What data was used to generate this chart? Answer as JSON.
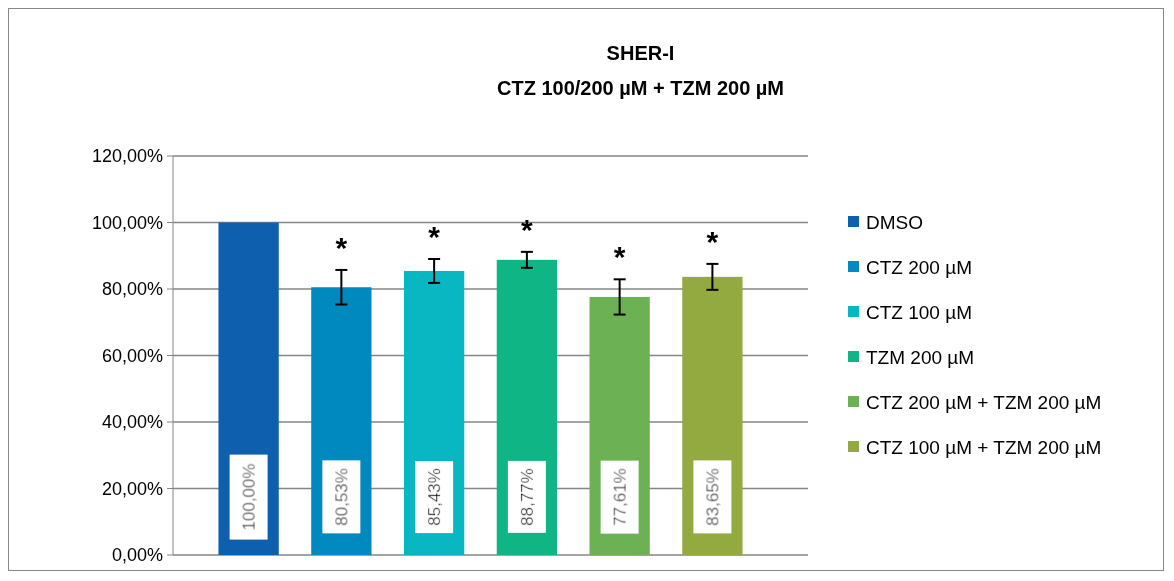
{
  "chart_data": {
    "type": "bar",
    "title": "SHER-I",
    "subtitle": "CTZ 100/200 µM + TZM 200 µM",
    "categories": [
      null
    ],
    "series": [
      {
        "name": "DMSO",
        "color": "#0e5fad",
        "values": [
          100
        ],
        "value_labels": [
          "100,00%"
        ]
      },
      {
        "name": "CTZ 200 µM",
        "color": "#0089bf",
        "values": [
          80.53
        ],
        "errors": [
          5.2
        ],
        "value_labels": [
          "80,53%"
        ]
      },
      {
        "name": "CTZ 100 µM",
        "color": "#08b7c1",
        "values": [
          85.43
        ],
        "errors": [
          3.6
        ],
        "value_labels": [
          "85,43%"
        ]
      },
      {
        "name": "TZM 200 µM",
        "color": "#10b586",
        "values": [
          88.77
        ],
        "errors": [
          2.4
        ],
        "value_labels": [
          "88,77%"
        ]
      },
      {
        "name": "CTZ 200 µM + TZM 200 µM",
        "color": "#6db155",
        "values": [
          77.61
        ],
        "errors": [
          5.3
        ],
        "value_labels": [
          "77,61%"
        ]
      },
      {
        "name": "CTZ 100 µM + TZM 200 µM",
        "color": "#93aa41",
        "values": [
          83.65
        ],
        "errors": [
          3.9
        ],
        "value_labels": [
          "83,65%"
        ]
      }
    ],
    "annotations": [
      "*",
      "*",
      "*",
      "*",
      "*"
    ],
    "ylim": [
      0,
      120
    ],
    "yticks": [
      {
        "value": 0,
        "label": "0,00%"
      },
      {
        "value": 20,
        "label": "20,00%"
      },
      {
        "value": 40,
        "label": "40,00%"
      },
      {
        "value": 60,
        "label": "60,00%"
      },
      {
        "value": 80,
        "label": "80,00%"
      },
      {
        "value": 100,
        "label": "100,00%"
      },
      {
        "value": 120,
        "label": "120,00%"
      }
    ],
    "grid": "y",
    "legend": "right"
  }
}
